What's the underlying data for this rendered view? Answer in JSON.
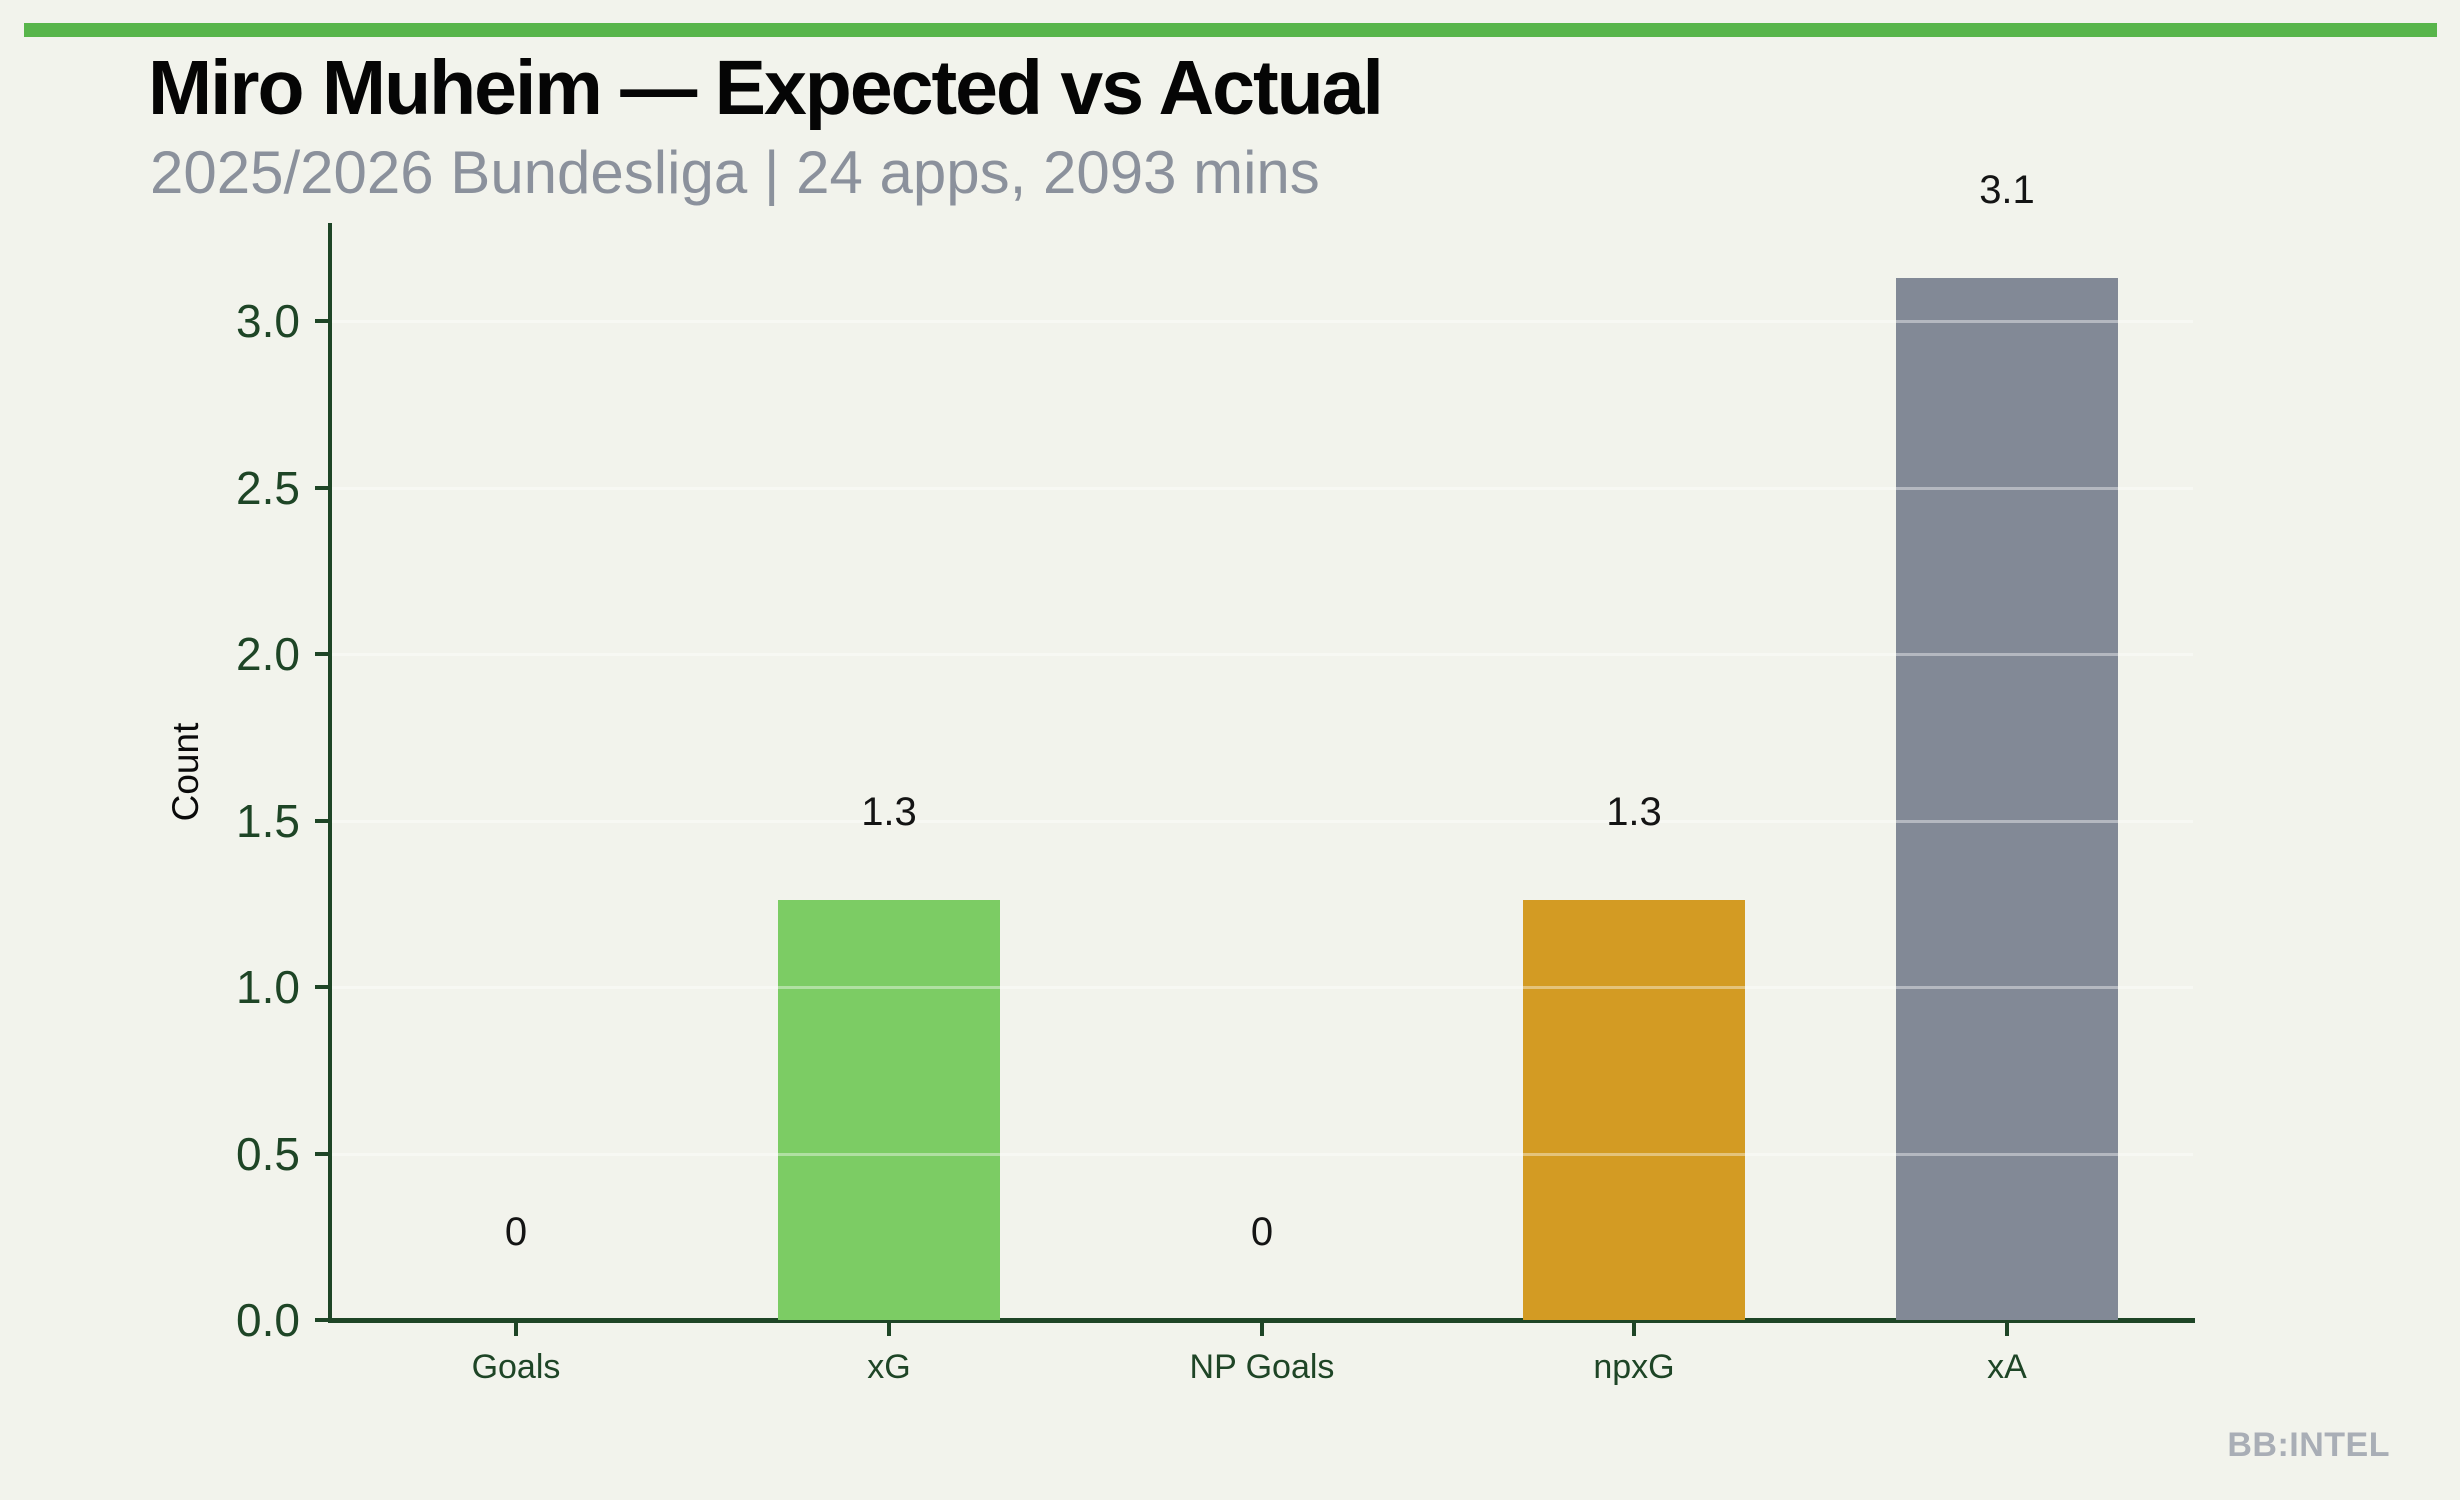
{
  "page": {
    "background_color": "#f2f3ec",
    "accent_bar_color": "#58b54b",
    "axis_color": "#1e4526",
    "title_color": "#050505",
    "subtitle_color": "#8b919c",
    "watermark_color": "#a9aeb6"
  },
  "header": {
    "title": "Miro Muheim — Expected vs Actual",
    "subtitle": "2025/2026 Bundesliga | 24 apps, 2093 mins"
  },
  "watermark": "BB:INTEL",
  "chart_data": {
    "type": "bar",
    "title": "Miro Muheim — Expected vs Actual",
    "subtitle": "2025/2026 Bundesliga | 24 apps, 2093 mins",
    "categories": [
      "Goals",
      "xG",
      "NP Goals",
      "npxG",
      "xA"
    ],
    "values": [
      0,
      1.26,
      0,
      1.26,
      3.13
    ],
    "data_labels": [
      "0",
      "1.3",
      "0",
      "1.3",
      "3.1"
    ],
    "bar_colors": [
      "#7ccc64",
      "#7ccc64",
      "#d39b23",
      "#d39b23",
      "#828996"
    ],
    "xlabel": "",
    "ylabel": "Count",
    "yticks": [
      "0.0",
      "0.5",
      "1.0",
      "1.5",
      "2.0",
      "2.5",
      "3.0"
    ],
    "ylim": [
      0,
      3.3
    ],
    "grid": true,
    "grid_color": "rgba(255,255,255,0.4)",
    "legend": "none"
  }
}
